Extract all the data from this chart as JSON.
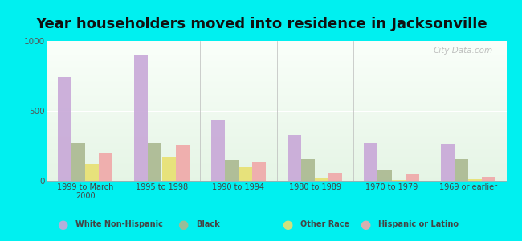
{
  "title": "Year householders moved into residence in Jacksonville",
  "categories": [
    "1999 to March\n2000",
    "1995 to 1998",
    "1990 to 1994",
    "1980 to 1989",
    "1970 to 1979",
    "1969 or earlier"
  ],
  "series": {
    "White Non-Hispanic": [
      740,
      900,
      430,
      330,
      270,
      265
    ],
    "Black": [
      270,
      270,
      150,
      155,
      75,
      155
    ],
    "Other Race": [
      120,
      170,
      100,
      15,
      5,
      10
    ],
    "Hispanic or Latino": [
      200,
      260,
      130,
      55,
      45,
      30
    ]
  },
  "colors": {
    "White Non-Hispanic": "#c8a8d8",
    "Black": "#aab890",
    "Other Race": "#e8e070",
    "Hispanic or Latino": "#f0a8a8"
  },
  "ylim": [
    0,
    1000
  ],
  "yticks": [
    0,
    500,
    1000
  ],
  "background_color": "#00f0f0",
  "watermark": "City-Data.com",
  "title_fontsize": 13,
  "bar_width": 0.18
}
